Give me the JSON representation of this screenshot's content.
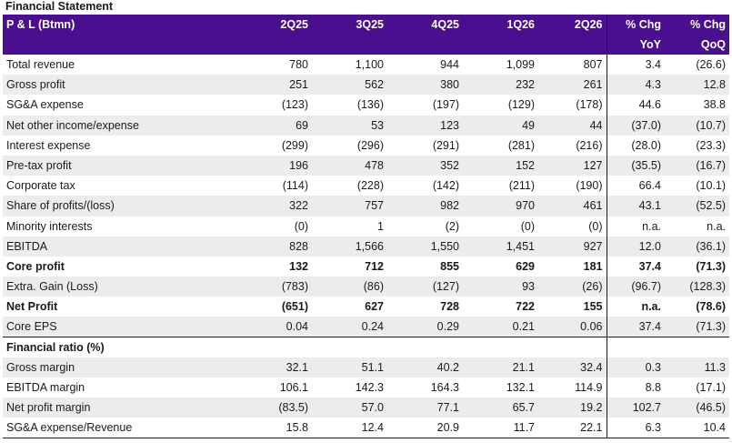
{
  "title": "Financial Statement",
  "header": {
    "label": "P & L (Btmn)",
    "periods": [
      "2Q25",
      "3Q25",
      "4Q25",
      "1Q26",
      "2Q26"
    ],
    "chg_yoy": [
      "% Chg",
      "YoY"
    ],
    "chg_qoq": [
      "% Chg",
      "QoQ"
    ]
  },
  "rows": [
    {
      "label": "Total revenue",
      "values": [
        "780",
        "1,100",
        "944",
        "1,099",
        "807"
      ],
      "yoy": "3.4",
      "qoq": "(26.6)"
    },
    {
      "label": "Gross profit",
      "values": [
        "251",
        "562",
        "380",
        "232",
        "261"
      ],
      "yoy": "4.3",
      "qoq": "12.8"
    },
    {
      "label": "SG&A expense",
      "values": [
        "(123)",
        "(136)",
        "(197)",
        "(129)",
        "(178)"
      ],
      "yoy": "44.6",
      "qoq": "38.8"
    },
    {
      "label": "Net other income/expense",
      "values": [
        "69",
        "53",
        "123",
        "49",
        "44"
      ],
      "yoy": "(37.0)",
      "qoq": "(10.7)"
    },
    {
      "label": "Interest expense",
      "values": [
        "(299)",
        "(296)",
        "(291)",
        "(281)",
        "(216)"
      ],
      "yoy": "(28.0)",
      "qoq": "(23.3)"
    },
    {
      "label": "Pre-tax profit",
      "values": [
        "196",
        "478",
        "352",
        "152",
        "127"
      ],
      "yoy": "(35.5)",
      "qoq": "(16.7)"
    },
    {
      "label": "Corporate tax",
      "values": [
        "(114)",
        "(228)",
        "(142)",
        "(211)",
        "(190)"
      ],
      "yoy": "66.4",
      "qoq": "(10.1)"
    },
    {
      "label": "Share of profits/(loss)",
      "values": [
        "322",
        "757",
        "982",
        "970",
        "461"
      ],
      "yoy": "43.1",
      "qoq": "(52.5)"
    },
    {
      "label": "Minority interests",
      "values": [
        "(0)",
        "1",
        "(2)",
        "(0)",
        "(0)"
      ],
      "yoy": "n.a.",
      "qoq": "n.a."
    },
    {
      "label": "EBITDA",
      "values": [
        "828",
        "1,566",
        "1,550",
        "1,451",
        "927"
      ],
      "yoy": "12.0",
      "qoq": "(36.1)"
    },
    {
      "label": "Core profit",
      "values": [
        "132",
        "712",
        "855",
        "629",
        "181"
      ],
      "yoy": "37.4",
      "qoq": "(71.3)"
    },
    {
      "label": "Extra. Gain (Loss)",
      "values": [
        "(783)",
        "(86)",
        "(127)",
        "93",
        "(26)"
      ],
      "yoy": "(96.7)",
      "qoq": "(128.3)"
    },
    {
      "label": "Net Profit",
      "values": [
        "(651)",
        "627",
        "728",
        "722",
        "155"
      ],
      "yoy": "n.a.",
      "qoq": "(78.6)"
    },
    {
      "label": "Core EPS",
      "values": [
        "0.04",
        "0.24",
        "0.29",
        "0.21",
        "0.06"
      ],
      "yoy": "37.4",
      "qoq": "(71.3)"
    }
  ],
  "ratio_section_label": "Financial ratio (%)",
  "ratios": [
    {
      "label": "Gross margin",
      "values": [
        "32.1",
        "51.1",
        "40.2",
        "21.1",
        "32.4"
      ],
      "yoy": "0.3",
      "qoq": "11.3"
    },
    {
      "label": "EBITDA margin",
      "values": [
        "106.1",
        "142.3",
        "164.3",
        "132.1",
        "114.9"
      ],
      "yoy": "8.8",
      "qoq": "(17.1)"
    },
    {
      "label": "Net profit margin",
      "values": [
        "(83.5)",
        "57.0",
        "77.1",
        "65.7",
        "19.2"
      ],
      "yoy": "102.7",
      "qoq": "(46.5)"
    },
    {
      "label": "SG&A expense/Revenue",
      "values": [
        "15.8",
        "12.4",
        "20.9",
        "11.7",
        "22.1"
      ],
      "yoy": "6.3",
      "qoq": "10.4"
    }
  ],
  "colors": {
    "header_bg": "#4a0f8f",
    "shade_bg": "#ececec"
  }
}
